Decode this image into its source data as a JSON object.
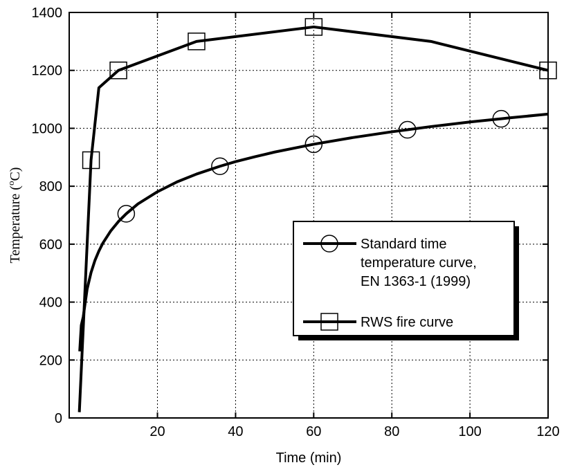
{
  "chart_data": {
    "type": "line",
    "title": "",
    "xlabel": "Time (min)",
    "ylabel": {
      "prefix": "Temperature (",
      "superscript": "o",
      "suffix": "C)"
    },
    "xlim": [
      0,
      120
    ],
    "ylim": [
      0,
      1400
    ],
    "xticks": [
      20,
      40,
      60,
      80,
      100,
      120
    ],
    "yticks": [
      0,
      200,
      400,
      600,
      800,
      1000,
      1200,
      1400
    ],
    "grid": true,
    "legend_position": "center-right",
    "line_color": "#000000",
    "series": [
      {
        "name_lines": [
          "Standard time",
          "temperature curve,",
          "EN 1363-1 (1999)"
        ],
        "marker": "circle",
        "x": [
          0.1,
          0.5,
          1,
          2,
          3,
          4,
          5,
          6,
          8,
          10,
          12,
          15,
          20,
          25,
          30,
          36,
          40,
          45,
          50,
          60,
          70,
          80,
          84,
          90,
          100,
          108,
          110,
          120
        ],
        "values": [
          230,
          320,
          349,
          445,
          502,
          544,
          576,
          603,
          645,
          678,
          705,
          739,
          781,
          815,
          842,
          869,
          885,
          902,
          918,
          945,
          968,
          988,
          995,
          1006,
          1022,
          1033,
          1036,
          1049
        ],
        "marker_x": [
          12,
          36,
          60,
          84,
          108
        ],
        "marker_values": [
          705,
          869,
          945,
          995,
          1033
        ]
      },
      {
        "name_lines": [
          "RWS fire curve"
        ],
        "marker": "square",
        "x": [
          0,
          3,
          5,
          10,
          30,
          60,
          90,
          120
        ],
        "values": [
          20,
          890,
          1140,
          1200,
          1300,
          1350,
          1300,
          1200
        ],
        "marker_x": [
          3,
          10,
          30,
          60,
          120
        ],
        "marker_values": [
          890,
          1200,
          1300,
          1350,
          1200
        ]
      }
    ]
  }
}
